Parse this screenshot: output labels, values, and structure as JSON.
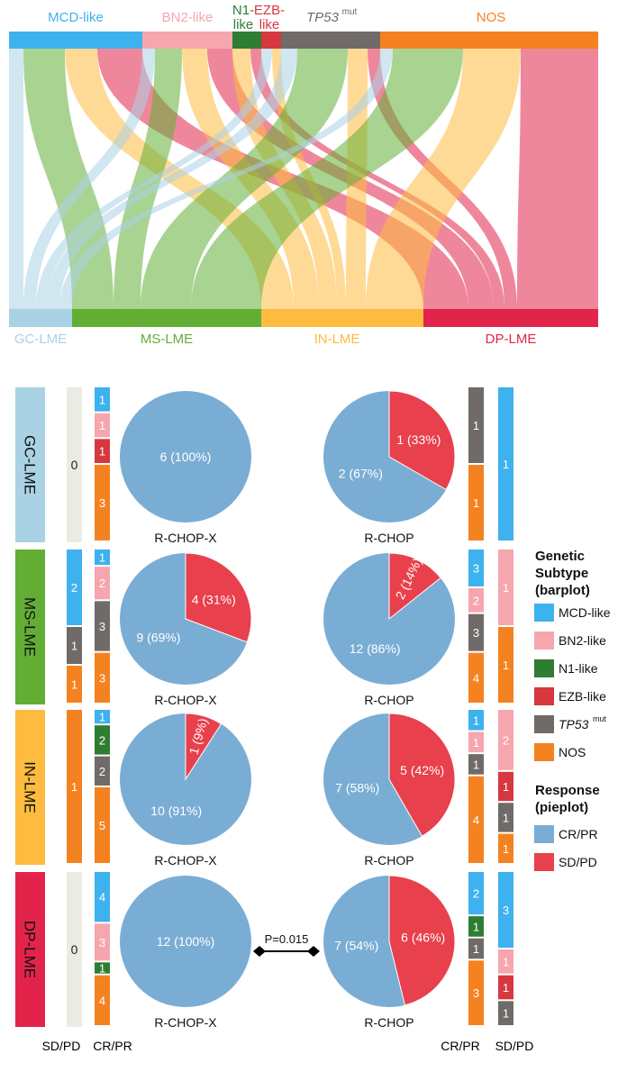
{
  "colors": {
    "MCD-like": "#3EB1EF",
    "BN2-like": "#F6A6AE",
    "N1-like": "#2E7D32",
    "EZB-like": "#D7373F",
    "TP53mut": "#706A68",
    "NOS": "#F58220",
    "GC-LME": "#A9D2E5",
    "MS-LME": "#62AE35",
    "IN-LME": "#FDBB3F",
    "DP-LME": "#E2244B",
    "CR/PR": "#7AADD4",
    "SD/PD": "#E8404C",
    "zero_bar": "#ECEBE3"
  },
  "sankey": {
    "top_labels": [
      {
        "key": "MCD-like",
        "lines": [
          "MCD-like"
        ]
      },
      {
        "key": "BN2-like",
        "lines": [
          "BN2-like"
        ]
      },
      {
        "key": "N1-like",
        "lines": [
          "N1-",
          "like"
        ]
      },
      {
        "key": "EZB-like",
        "lines": [
          "EZB-",
          "like"
        ]
      },
      {
        "key": "TP53mut",
        "main": "TP53",
        "sup": "mut"
      },
      {
        "key": "NOS",
        "lines": [
          "NOS"
        ]
      }
    ],
    "bottom_labels": [
      "GC-LME",
      "MS-LME",
      "IN-LME",
      "DP-LME"
    ]
  },
  "legend": {
    "genetic_title": [
      "Genetic",
      "Subtype",
      "(barplot)"
    ],
    "genetic_items": [
      {
        "key": "MCD-like",
        "label": "MCD-like"
      },
      {
        "key": "BN2-like",
        "label": "BN2-like"
      },
      {
        "key": "N1-like",
        "label": "N1-like"
      },
      {
        "key": "EZB-like",
        "label": "EZB-like"
      },
      {
        "key": "TP53mut",
        "label": "TP53",
        "sup": "mut",
        "italic": true
      },
      {
        "key": "NOS",
        "label": "NOS"
      }
    ],
    "response_title": [
      "Response",
      "(pieplot)"
    ],
    "response_items": [
      {
        "key": "CR/PR",
        "label": "CR/PR"
      },
      {
        "key": "SD/PD",
        "label": "SD/PD"
      }
    ]
  },
  "bottom_labels": {
    "left_sd": "SD/PD",
    "left_cr": "CR/PR",
    "right_cr": "CR/PR",
    "right_sd": "SD/PD"
  },
  "pvalue": "P=0.015",
  "chart_data": {
    "type": "pie",
    "rows": [
      {
        "lme": "GC-LME",
        "left_sd": [],
        "left_cr": [
          {
            "k": "MCD-like",
            "v": 1
          },
          {
            "k": "BN2-like",
            "v": 1
          },
          {
            "k": "EZB-like",
            "v": 1
          },
          {
            "k": "NOS",
            "v": 3
          }
        ],
        "pie_x": {
          "label": "R-CHOP-X",
          "slices": [
            {
              "k": "CR/PR",
              "v": 6,
              "text": "6 (100%)"
            }
          ]
        },
        "pie_c": {
          "label": "R-CHOP",
          "slices": [
            {
              "k": "CR/PR",
              "v": 2,
              "text": "2 (67%)"
            },
            {
              "k": "SD/PD",
              "v": 1,
              "text": "1 (33%)"
            }
          ]
        },
        "right_cr": [
          {
            "k": "TP53mut",
            "v": 1
          },
          {
            "k": "NOS",
            "v": 1
          }
        ],
        "right_sd": [
          {
            "k": "MCD-like",
            "v": 1
          }
        ]
      },
      {
        "lme": "MS-LME",
        "left_sd": [
          {
            "k": "MCD-like",
            "v": 2
          },
          {
            "k": "TP53mut",
            "v": 1
          },
          {
            "k": "NOS",
            "v": 1
          }
        ],
        "left_cr": [
          {
            "k": "MCD-like",
            "v": 1
          },
          {
            "k": "BN2-like",
            "v": 2
          },
          {
            "k": "TP53mut",
            "v": 3
          },
          {
            "k": "NOS",
            "v": 3
          }
        ],
        "pie_x": {
          "label": "R-CHOP-X",
          "slices": [
            {
              "k": "CR/PR",
              "v": 9,
              "text": "9 (69%)"
            },
            {
              "k": "SD/PD",
              "v": 4,
              "text": "4 (31%)"
            }
          ]
        },
        "pie_c": {
          "label": "R-CHOP",
          "slices": [
            {
              "k": "CR/PR",
              "v": 12,
              "text": "12 (86%)"
            },
            {
              "k": "SD/PD",
              "v": 2,
              "text": "2 (14%)"
            }
          ]
        },
        "right_cr": [
          {
            "k": "MCD-like",
            "v": 3
          },
          {
            "k": "BN2-like",
            "v": 2
          },
          {
            "k": "TP53mut",
            "v": 3
          },
          {
            "k": "NOS",
            "v": 4
          }
        ],
        "right_sd": [
          {
            "k": "BN2-like",
            "v": 1
          },
          {
            "k": "NOS",
            "v": 1
          }
        ]
      },
      {
        "lme": "IN-LME",
        "left_sd": [
          {
            "k": "NOS",
            "v": 1
          }
        ],
        "left_cr": [
          {
            "k": "MCD-like",
            "v": 1
          },
          {
            "k": "N1-like",
            "v": 2
          },
          {
            "k": "TP53mut",
            "v": 2
          },
          {
            "k": "NOS",
            "v": 5
          }
        ],
        "pie_x": {
          "label": "R-CHOP-X",
          "slices": [
            {
              "k": "CR/PR",
              "v": 10,
              "text": "10 (91%)"
            },
            {
              "k": "SD/PD",
              "v": 1,
              "text": "1 (9%)"
            }
          ]
        },
        "pie_c": {
          "label": "R-CHOP",
          "slices": [
            {
              "k": "CR/PR",
              "v": 7,
              "text": "7 (58%)"
            },
            {
              "k": "SD/PD",
              "v": 5,
              "text": "5 (42%)"
            }
          ]
        },
        "right_cr": [
          {
            "k": "MCD-like",
            "v": 1
          },
          {
            "k": "BN2-like",
            "v": 1
          },
          {
            "k": "TP53mut",
            "v": 1
          },
          {
            "k": "NOS",
            "v": 4
          }
        ],
        "right_sd": [
          {
            "k": "BN2-like",
            "v": 2
          },
          {
            "k": "EZB-like",
            "v": 1
          },
          {
            "k": "TP53mut",
            "v": 1
          },
          {
            "k": "NOS",
            "v": 1
          }
        ]
      },
      {
        "lme": "DP-LME",
        "left_sd": [],
        "left_cr": [
          {
            "k": "MCD-like",
            "v": 4
          },
          {
            "k": "BN2-like",
            "v": 3
          },
          {
            "k": "N1-like",
            "v": 1
          },
          {
            "k": "NOS",
            "v": 4
          }
        ],
        "pie_x": {
          "label": "R-CHOP-X",
          "slices": [
            {
              "k": "CR/PR",
              "v": 12,
              "text": "12 (100%)"
            }
          ]
        },
        "pie_c": {
          "label": "R-CHOP",
          "slices": [
            {
              "k": "CR/PR",
              "v": 7,
              "text": "7 (54%)"
            },
            {
              "k": "SD/PD",
              "v": 6,
              "text": "6 (46%)"
            }
          ]
        },
        "right_cr": [
          {
            "k": "MCD-like",
            "v": 2
          },
          {
            "k": "N1-like",
            "v": 1
          },
          {
            "k": "TP53mut",
            "v": 1
          },
          {
            "k": "NOS",
            "v": 3
          }
        ],
        "right_sd": [
          {
            "k": "MCD-like",
            "v": 3
          },
          {
            "k": "BN2-like",
            "v": 1
          },
          {
            "k": "EZB-like",
            "v": 1
          },
          {
            "k": "TP53mut",
            "v": 1
          }
        ]
      }
    ]
  }
}
